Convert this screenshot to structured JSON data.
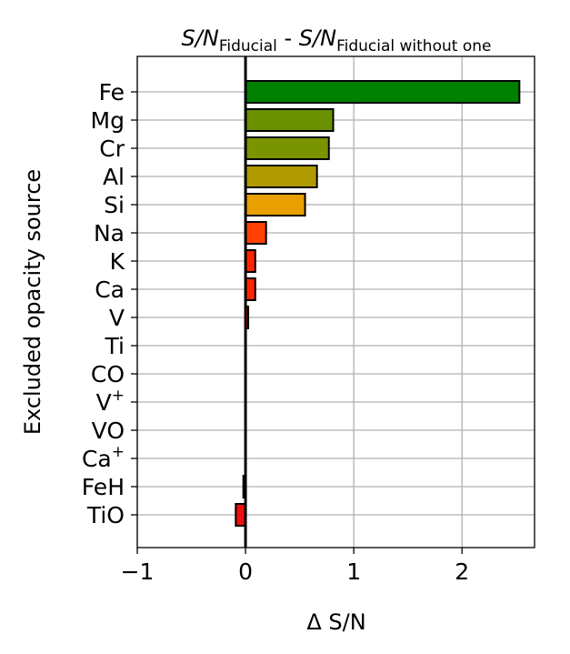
{
  "chart_data": {
    "type": "bar",
    "orientation": "horizontal",
    "title": {
      "term1_main": "S/N",
      "term1_sub": "Fiducial",
      "separator": " - ",
      "term2_main": "S/N",
      "term2_sub": "Fiducial without one"
    },
    "xlabel": "Δ S/N",
    "ylabel": "Excluded opacity source",
    "xlim": [
      -1,
      2.67
    ],
    "xticks": [
      {
        "value": -1,
        "label": "−1"
      },
      {
        "value": 0,
        "label": "0"
      },
      {
        "value": 1,
        "label": "1"
      },
      {
        "value": 2,
        "label": "2"
      }
    ],
    "grid": true,
    "zero_line": true,
    "categories": [
      {
        "label": "Fe",
        "sup": ""
      },
      {
        "label": "Mg",
        "sup": ""
      },
      {
        "label": "Cr",
        "sup": ""
      },
      {
        "label": "Al",
        "sup": ""
      },
      {
        "label": "Si",
        "sup": ""
      },
      {
        "label": "Na",
        "sup": ""
      },
      {
        "label": "K",
        "sup": ""
      },
      {
        "label": "Ca",
        "sup": ""
      },
      {
        "label": "V",
        "sup": ""
      },
      {
        "label": "Ti",
        "sup": ""
      },
      {
        "label": "CO",
        "sup": ""
      },
      {
        "label": "V",
        "sup": "+"
      },
      {
        "label": "VO",
        "sup": ""
      },
      {
        "label": "Ca",
        "sup": "+"
      },
      {
        "label": "FeH",
        "sup": ""
      },
      {
        "label": "TiO",
        "sup": ""
      }
    ],
    "values": [
      2.53,
      0.81,
      0.77,
      0.66,
      0.55,
      0.19,
      0.09,
      0.09,
      0.025,
      0.0,
      0.0,
      0.0,
      0.0,
      0.0,
      -0.02,
      -0.09
    ],
    "colors": [
      "#008000",
      "#6a9000",
      "#7a9400",
      "#b09a00",
      "#e8a000",
      "#ff4000",
      "#ff2400",
      "#ff2400",
      "#ff2000",
      "#ff1800",
      "#ff1800",
      "#ff1800",
      "#ff1800",
      "#ff1800",
      "#ff1800",
      "#ee1010"
    ]
  }
}
